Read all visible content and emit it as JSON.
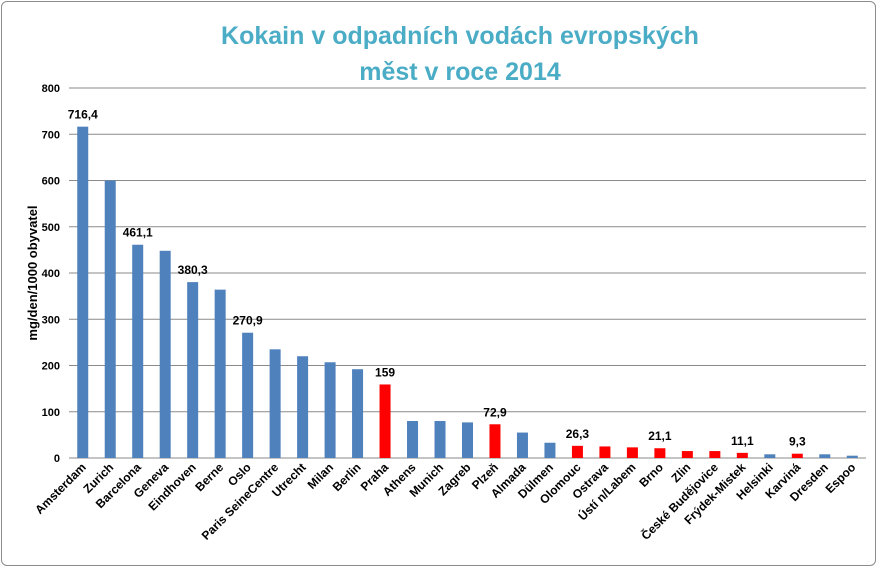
{
  "chart_data": {
    "type": "bar",
    "title_line1": "Kokain v odpadních vodách evropských",
    "title_line2": "měst v roce 2014",
    "xlabel": "",
    "ylabel": "mg/den/1000 obyvatel",
    "ylim": [
      0,
      800
    ],
    "yticks": [
      0,
      100,
      200,
      300,
      400,
      500,
      600,
      700,
      800
    ],
    "grid": true,
    "legend": "none",
    "colors": {
      "default": "#4f81bd",
      "highlight": "#ff0000"
    },
    "categories": [
      "Amsterdam",
      "Zurich",
      "Barcelona",
      "Geneva",
      "Eindhoven",
      "Berne",
      "Oslo",
      "Paris SeineCentre",
      "Utrecht",
      "Milan",
      "Berlin",
      "Praha",
      "Athens",
      "Munich",
      "Zagreb",
      "Plzeň",
      "Almada",
      "Dülmen",
      "Olomouc",
      "Ostrava",
      "Ústí n/Labem",
      "Brno",
      "Zlin",
      "České Budějovice",
      "Frýdek-Mistek",
      "Helsinki",
      "Karviná",
      "Dresden",
      "Espoo"
    ],
    "values": [
      716.4,
      600,
      461.1,
      448,
      380.3,
      364,
      270.9,
      235,
      220,
      207,
      192,
      159,
      80,
      80,
      77,
      72.9,
      55,
      33,
      26.3,
      25,
      23,
      21.1,
      15,
      15,
      11.1,
      8,
      9.3,
      8,
      5
    ],
    "highlighted": [
      false,
      false,
      false,
      false,
      false,
      false,
      false,
      false,
      false,
      false,
      false,
      true,
      false,
      false,
      false,
      true,
      false,
      false,
      true,
      true,
      true,
      true,
      true,
      true,
      true,
      false,
      true,
      false,
      false
    ],
    "data_labels": [
      "716,4",
      "",
      "461,1",
      "",
      "380,3",
      "",
      "270,9",
      "",
      "",
      "",
      "",
      "159",
      "",
      "",
      "",
      "72,9",
      "",
      "",
      "26,3",
      "",
      "",
      "21,1",
      "",
      "",
      "11,1",
      "",
      "9,3",
      "",
      ""
    ]
  }
}
